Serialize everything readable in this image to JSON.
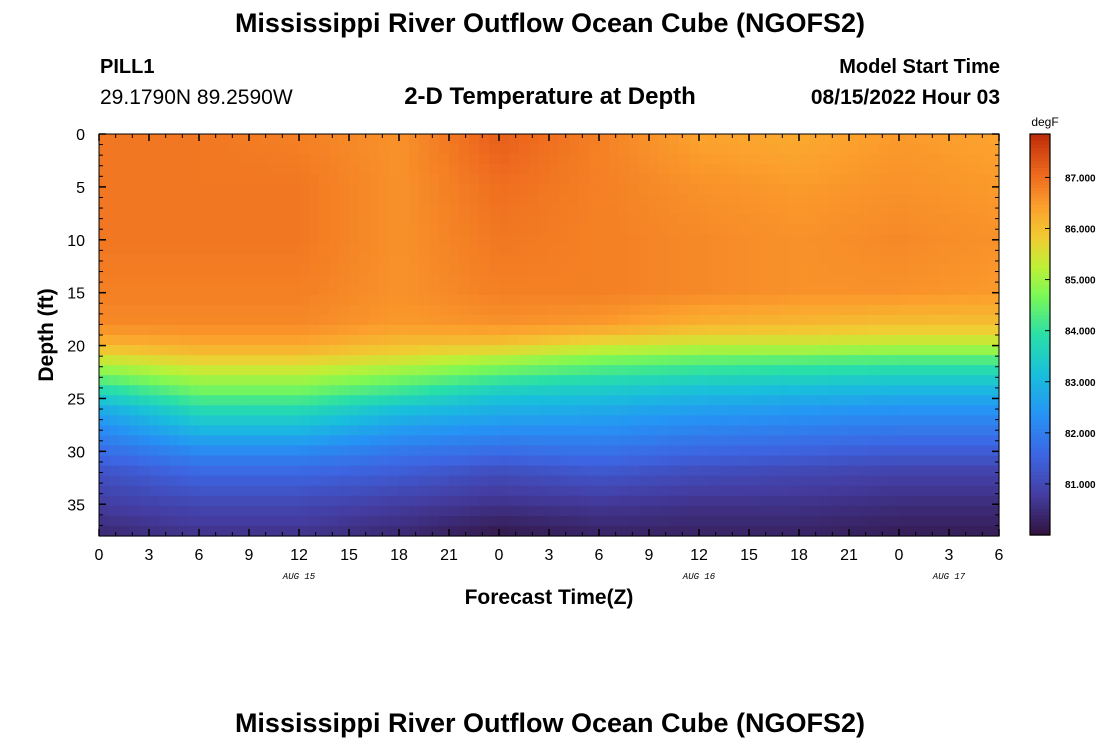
{
  "title": "Mississippi River Outflow Ocean Cube (NGOFS2)",
  "station": {
    "name": "PILL1",
    "coords": "29.1790N  89.2590W"
  },
  "subtitle": "2-D Temperature at Depth",
  "model_start": {
    "label": "Model Start Time",
    "time": "08/15/2022 Hour 03"
  },
  "chart_data": {
    "type": "heatmap",
    "title": "2-D Temperature at Depth",
    "xlabel": "Forecast Time(Z)",
    "ylabel": "Depth (ft)",
    "x_range_hours": [
      0,
      54
    ],
    "xlim": [
      "2022-08-15 00Z",
      "2022-08-17 06Z"
    ],
    "x_ticks": [
      "0",
      "3",
      "6",
      "9",
      "12",
      "15",
      "18",
      "21",
      "0",
      "3",
      "6",
      "9",
      "12",
      "15",
      "18",
      "21",
      "0",
      "3",
      "6"
    ],
    "date_labels": [
      "AUG 15",
      "AUG 16",
      "AUG 17"
    ],
    "y_ticks": [
      0,
      5,
      10,
      15,
      20,
      25,
      30,
      35
    ],
    "ylim": [
      38,
      0
    ],
    "y_inverted": true,
    "colorbar": {
      "unit": "degF",
      "ticks": [
        "87.000",
        "86.000",
        "85.000",
        "84.000",
        "83.000",
        "82.000",
        "81.000"
      ],
      "tick_values": [
        87,
        86,
        85,
        84,
        83,
        82,
        81
      ],
      "range": [
        80.0,
        87.85
      ]
    },
    "times_hours": [
      0,
      6,
      12,
      18,
      24,
      30,
      36,
      42,
      48,
      54
    ],
    "depths_ft": [
      0,
      5,
      10,
      15,
      18,
      20,
      21.5,
      23,
      24.5,
      26,
      28,
      30,
      32,
      35,
      38
    ],
    "values_degF": [
      [
        86.9,
        86.9,
        86.8,
        86.6,
        87.2,
        86.8,
        86.4,
        86.3,
        86.5,
        86.4
      ],
      [
        86.9,
        86.9,
        86.9,
        86.6,
        87.0,
        86.8,
        86.6,
        86.5,
        86.6,
        86.5
      ],
      [
        86.9,
        86.9,
        86.9,
        86.6,
        86.9,
        86.8,
        86.7,
        86.6,
        86.7,
        86.6
      ],
      [
        86.8,
        86.8,
        86.8,
        86.6,
        86.8,
        86.8,
        86.7,
        86.6,
        86.6,
        86.5
      ],
      [
        86.7,
        86.7,
        86.7,
        86.5,
        86.6,
        86.5,
        86.2,
        86.1,
        86.0,
        86.0
      ],
      [
        86.1,
        86.3,
        86.3,
        86.0,
        85.9,
        85.5,
        85.3,
        85.3,
        85.2,
        85.2
      ],
      [
        85.3,
        85.7,
        85.7,
        85.4,
        85.0,
        84.6,
        84.4,
        84.3,
        84.2,
        84.2
      ],
      [
        84.5,
        85.1,
        85.1,
        84.7,
        84.2,
        83.9,
        83.7,
        83.6,
        83.5,
        83.5
      ],
      [
        83.6,
        84.5,
        84.5,
        84.0,
        83.4,
        83.3,
        83.1,
        83.0,
        82.9,
        82.9
      ],
      [
        82.8,
        83.8,
        83.8,
        83.2,
        82.9,
        82.8,
        82.6,
        82.5,
        82.4,
        82.4
      ],
      [
        82.2,
        83.0,
        83.0,
        82.5,
        82.3,
        82.3,
        82.1,
        82.0,
        81.9,
        81.9
      ],
      [
        81.7,
        82.2,
        82.2,
        81.9,
        81.7,
        81.8,
        81.6,
        81.5,
        81.4,
        81.4
      ],
      [
        81.2,
        81.6,
        81.6,
        81.4,
        81.1,
        81.3,
        81.1,
        81.0,
        80.9,
        80.9
      ],
      [
        80.8,
        81.0,
        81.0,
        80.8,
        80.6,
        80.7,
        80.6,
        80.6,
        80.5,
        80.5
      ],
      [
        80.4,
        80.6,
        80.6,
        80.4,
        80.1,
        80.3,
        80.3,
        80.3,
        80.2,
        80.2
      ]
    ]
  }
}
